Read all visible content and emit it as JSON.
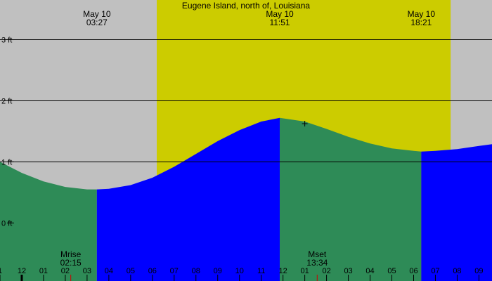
{
  "chart_data": {
    "type": "area",
    "title": "Eugene Island, north of, Louisiana",
    "xlabel": "",
    "ylabel": "",
    "y_unit": "ft",
    "ylim": [
      -0.95,
      3.65
    ],
    "xlim_hours": [
      -1.0,
      21.6
    ],
    "grid": "horizontal",
    "y_ticks": [
      {
        "value": 3,
        "label": "3 ft"
      },
      {
        "value": 2,
        "label": "2 ft"
      },
      {
        "value": 1,
        "label": "1 ft"
      },
      {
        "value": 0,
        "label": "0 ft"
      }
    ],
    "x_ticks": [
      {
        "hour": -1,
        "label": "1"
      },
      {
        "hour": 0,
        "label": "12"
      },
      {
        "hour": 1,
        "label": "01"
      },
      {
        "hour": 2,
        "label": "02"
      },
      {
        "hour": 3,
        "label": "03"
      },
      {
        "hour": 4,
        "label": "04"
      },
      {
        "hour": 5,
        "label": "05"
      },
      {
        "hour": 6,
        "label": "06"
      },
      {
        "hour": 7,
        "label": "07"
      },
      {
        "hour": 8,
        "label": "08"
      },
      {
        "hour": 9,
        "label": "09"
      },
      {
        "hour": 10,
        "label": "10"
      },
      {
        "hour": 11,
        "label": "11"
      },
      {
        "hour": 12,
        "label": "12"
      },
      {
        "hour": 13,
        "label": "01"
      },
      {
        "hour": 14,
        "label": "02"
      },
      {
        "hour": 15,
        "label": "03"
      },
      {
        "hour": 16,
        "label": "04"
      },
      {
        "hour": 17,
        "label": "05"
      },
      {
        "hour": 18,
        "label": "06"
      },
      {
        "hour": 19,
        "label": "07"
      },
      {
        "hour": 20,
        "label": "08"
      },
      {
        "hour": 21,
        "label": "09"
      }
    ],
    "daylight_hours": [
      6.2,
      19.7
    ],
    "extremes": [
      {
        "type": "low",
        "date": "May 10",
        "time": "03:27",
        "hour": 3.45,
        "height": 0.55
      },
      {
        "type": "high",
        "date": "May 10",
        "time": "11:51",
        "hour": 11.85,
        "height": 1.72
      },
      {
        "type": "low",
        "date": "May 10",
        "time": "18:21",
        "hour": 18.35,
        "height": 1.17
      }
    ],
    "series": [
      {
        "points": [
          {
            "hour": -1.0,
            "height": 1.0
          },
          {
            "hour": 0.0,
            "height": 0.82
          },
          {
            "hour": 1.0,
            "height": 0.68
          },
          {
            "hour": 2.0,
            "height": 0.59
          },
          {
            "hour": 3.0,
            "height": 0.55
          },
          {
            "hour": 3.45,
            "height": 0.55
          },
          {
            "hour": 4.0,
            "height": 0.56
          },
          {
            "hour": 5.0,
            "height": 0.62
          },
          {
            "hour": 6.0,
            "height": 0.74
          },
          {
            "hour": 7.0,
            "height": 0.92
          },
          {
            "hour": 8.0,
            "height": 1.13
          },
          {
            "hour": 9.0,
            "height": 1.34
          },
          {
            "hour": 10.0,
            "height": 1.52
          },
          {
            "hour": 11.0,
            "height": 1.66
          },
          {
            "hour": 11.85,
            "height": 1.72
          },
          {
            "hour": 13.0,
            "height": 1.66
          },
          {
            "hour": 14.0,
            "height": 1.54
          },
          {
            "hour": 15.0,
            "height": 1.41
          },
          {
            "hour": 16.0,
            "height": 1.3
          },
          {
            "hour": 17.0,
            "height": 1.22
          },
          {
            "hour": 18.0,
            "height": 1.18
          },
          {
            "hour": 18.35,
            "height": 1.17
          },
          {
            "hour": 19.0,
            "height": 1.18
          },
          {
            "hour": 20.0,
            "height": 1.21
          },
          {
            "hour": 21.0,
            "height": 1.26
          },
          {
            "hour": 21.6,
            "height": 1.29
          }
        ]
      }
    ],
    "phase_boundaries_hours": [
      3.45,
      11.85,
      18.35
    ],
    "moon_events": [
      {
        "label": "Mrise",
        "time": "02:15",
        "hour": 2.25
      },
      {
        "label": "Mset",
        "time": "13:34",
        "hour": 13.57
      }
    ],
    "current_time_hour": 13.0,
    "colors": {
      "night": "#c0c0c0",
      "day": "#cccc00",
      "rising": "#0000ff",
      "falling": "#2e8b57",
      "grid": "#000000",
      "moon_marker": "#d00000"
    }
  }
}
